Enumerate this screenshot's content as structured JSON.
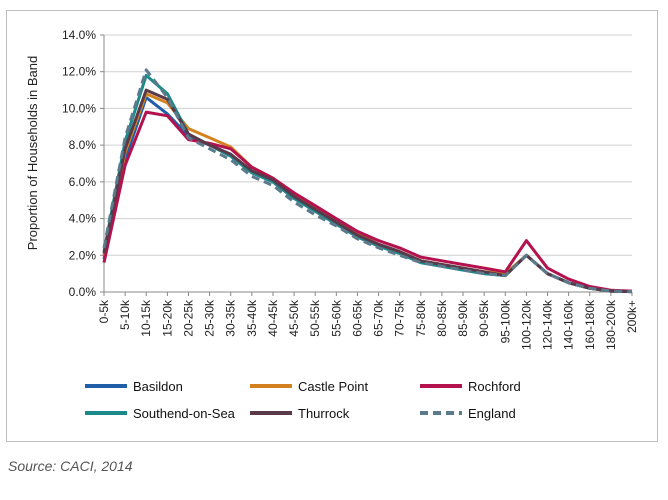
{
  "source": "Source: CACI, 2014",
  "chart_data": {
    "type": "line",
    "ylabel": "Proportion of Households in Band",
    "xlabel": "",
    "ylim": [
      0,
      14
    ],
    "y_ticks": [
      "0.0%",
      "2.0%",
      "4.0%",
      "6.0%",
      "8.0%",
      "10.0%",
      "12.0%",
      "14.0%"
    ],
    "grid": "horizontal",
    "legend_position": "bottom",
    "categories": [
      "0-5k",
      "5-10k",
      "10-15k",
      "15-20k",
      "20-25k",
      "25-30k",
      "30-35k",
      "35-40k",
      "40-45k",
      "45-50k",
      "50-55k",
      "55-60k",
      "60-65k",
      "65-70k",
      "70-75k",
      "75-80k",
      "80-85k",
      "85-90k",
      "90-95k",
      "95-100k",
      "100-120k",
      "120-140k",
      "140-160k",
      "160-180k",
      "180-200k",
      "200k+"
    ],
    "series": [
      {
        "name": "Basildon",
        "color": "#1f5fa8",
        "dash": "solid",
        "values": [
          1.8,
          7.2,
          10.6,
          9.7,
          8.5,
          8.0,
          7.5,
          6.5,
          6.0,
          5.1,
          4.4,
          3.7,
          3.0,
          2.5,
          2.1,
          1.6,
          1.4,
          1.2,
          1.0,
          0.9,
          2.0,
          1.0,
          0.5,
          0.2,
          0.05,
          0.02
        ]
      },
      {
        "name": "Castle Point",
        "color": "#d4821f",
        "dash": "solid",
        "values": [
          2.0,
          7.6,
          10.8,
          10.3,
          8.9,
          8.4,
          7.9,
          6.8,
          6.2,
          5.3,
          4.6,
          3.9,
          3.2,
          2.6,
          2.2,
          1.7,
          1.5,
          1.3,
          1.1,
          1.0,
          2.0,
          1.0,
          0.5,
          0.2,
          0.05,
          0.02
        ]
      },
      {
        "name": "Rochford",
        "color": "#b3124f",
        "dash": "solid",
        "values": [
          1.6,
          6.9,
          9.8,
          9.6,
          8.3,
          8.1,
          7.8,
          6.8,
          6.2,
          5.4,
          4.7,
          4.0,
          3.3,
          2.8,
          2.4,
          1.9,
          1.7,
          1.5,
          1.3,
          1.1,
          2.8,
          1.3,
          0.7,
          0.3,
          0.1,
          0.05
        ]
      },
      {
        "name": "Southend-on-Sea",
        "color": "#1a8a8a",
        "dash": "solid",
        "values": [
          2.2,
          8.2,
          11.8,
          10.8,
          8.6,
          8.0,
          7.4,
          6.5,
          6.0,
          5.1,
          4.4,
          3.7,
          3.0,
          2.5,
          2.1,
          1.6,
          1.4,
          1.2,
          1.0,
          0.9,
          2.0,
          1.0,
          0.5,
          0.2,
          0.05,
          0.02
        ]
      },
      {
        "name": "Thurrock",
        "color": "#5a3a4a",
        "dash": "solid",
        "values": [
          2.1,
          7.8,
          11.0,
          10.5,
          8.6,
          8.0,
          7.5,
          6.6,
          6.1,
          5.2,
          4.5,
          3.8,
          3.1,
          2.6,
          2.2,
          1.7,
          1.5,
          1.3,
          1.1,
          0.9,
          2.0,
          1.0,
          0.5,
          0.2,
          0.05,
          0.02
        ]
      },
      {
        "name": "England",
        "color": "#5b7b8c",
        "dash": "dashed",
        "values": [
          2.4,
          8.4,
          12.1,
          10.6,
          8.4,
          7.8,
          7.2,
          6.3,
          5.8,
          4.9,
          4.2,
          3.6,
          2.9,
          2.4,
          2.0,
          1.6,
          1.4,
          1.2,
          1.0,
          0.9,
          2.0,
          1.0,
          0.5,
          0.2,
          0.05,
          0.02
        ]
      }
    ]
  }
}
